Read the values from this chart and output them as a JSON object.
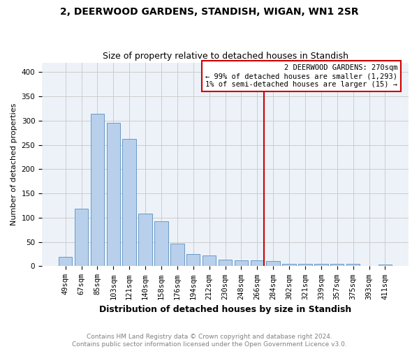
{
  "title1": "2, DEERWOOD GARDENS, STANDISH, WIGAN, WN1 2SR",
  "title2": "Size of property relative to detached houses in Standish",
  "xlabel": "Distribution of detached houses by size in Standish",
  "ylabel": "Number of detached properties",
  "categories": [
    "49sqm",
    "67sqm",
    "85sqm",
    "103sqm",
    "121sqm",
    "140sqm",
    "158sqm",
    "176sqm",
    "194sqm",
    "212sqm",
    "230sqm",
    "248sqm",
    "266sqm",
    "284sqm",
    "302sqm",
    "321sqm",
    "339sqm",
    "357sqm",
    "375sqm",
    "393sqm",
    "411sqm"
  ],
  "values": [
    20,
    118,
    315,
    295,
    262,
    108,
    93,
    46,
    25,
    22,
    14,
    12,
    12,
    10,
    5,
    5,
    5,
    5,
    5,
    0,
    3
  ],
  "bar_color": "#b8d0eb",
  "bar_edge_color": "#5a8fc0",
  "bar_width": 0.85,
  "vline_x_index": 12,
  "vline_color": "#cc0000",
  "annotation_title": "2 DEERWOOD GARDENS: 270sqm",
  "annotation_line1": "← 99% of detached houses are smaller (1,293)",
  "annotation_line2": "1% of semi-detached houses are larger (15) →",
  "annotation_box_color": "#cc0000",
  "grid_color": "#cccccc",
  "ylim": [
    0,
    420
  ],
  "yticks": [
    0,
    50,
    100,
    150,
    200,
    250,
    300,
    350,
    400
  ],
  "footer_line1": "Contains HM Land Registry data © Crown copyright and database right 2024.",
  "footer_line2": "Contains public sector information licensed under the Open Government Licence v3.0.",
  "bg_color": "#edf2f9",
  "title1_fontsize": 10,
  "title2_fontsize": 9,
  "xlabel_fontsize": 9,
  "ylabel_fontsize": 8,
  "tick_fontsize": 7.5,
  "footer_fontsize": 6.5,
  "footer_color": "#808080"
}
